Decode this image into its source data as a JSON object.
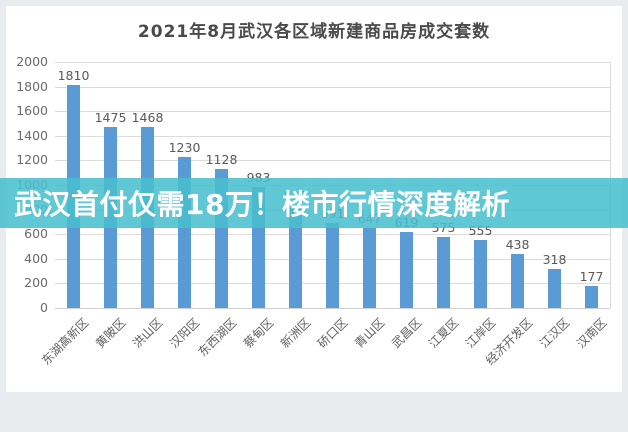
{
  "chart_data": {
    "type": "bar",
    "title": "2021年8月武汉各区域新建商品房成交套数",
    "categories": [
      "东湖高新区",
      "黄陂区",
      "洪山区",
      "汉阳区",
      "东西湖区",
      "蔡甸区",
      "新洲区",
      "硚口区",
      "青山区",
      "武昌区",
      "江夏区",
      "江岸区",
      "经济开发区",
      "江汉区",
      "汉南区"
    ],
    "values": [
      1810,
      1475,
      1468,
      1230,
      1128,
      983,
      837,
      691,
      647,
      619,
      575,
      555,
      438,
      318,
      177
    ],
    "xlabel": "",
    "ylabel": "",
    "ylim": [
      0,
      2000
    ],
    "ytick_step": 200,
    "grid": true,
    "legend": false,
    "bar_color": "#5b9bd5"
  },
  "overlay_banner": {
    "text": "武汉首付仅需18万！楼市行情深度解析",
    "background": "rgba(72,191,206,0.87)",
    "text_color": "#ffffff"
  },
  "colors": {
    "page_background": "#e9ebee",
    "card_background": "#ffffff",
    "gridline": "#dcdcdc",
    "axis_text": "#6b6b6b",
    "value_label": "#595959",
    "title_text": "#4a4a4a"
  }
}
